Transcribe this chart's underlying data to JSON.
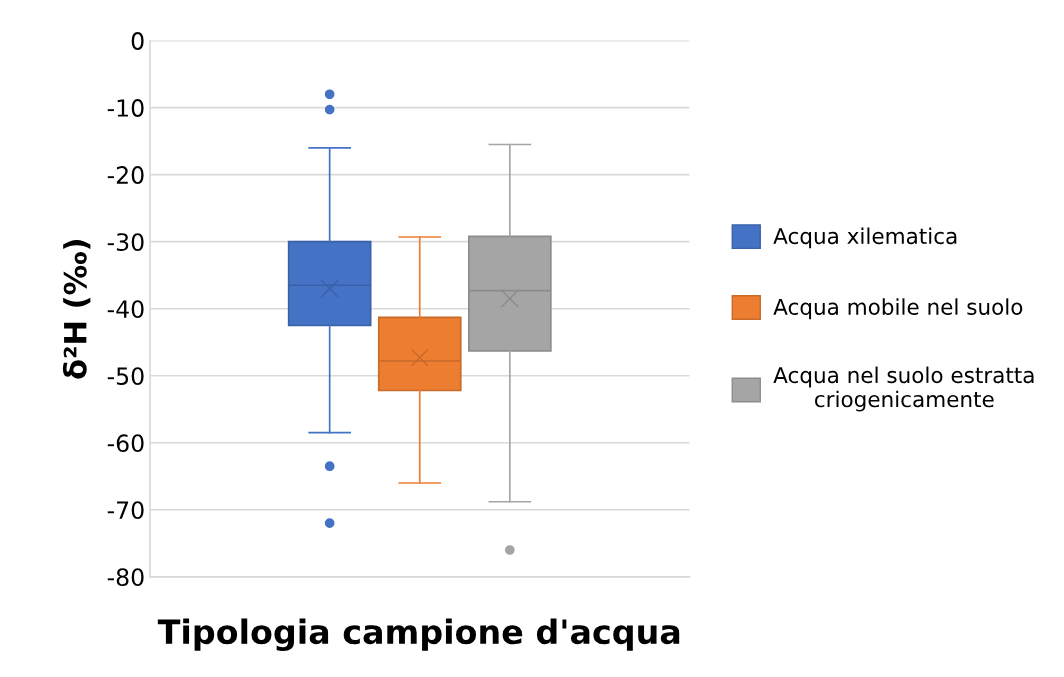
{
  "chart_data": {
    "type": "box",
    "xlabel": "Tipologia campione d'acqua",
    "ylabel": "δ²H (‰)",
    "categories": [
      null
    ],
    "series": [
      {
        "name": "Acqua xilematica",
        "color": "#4472c4",
        "boxes": [
          {
            "low": -58.5,
            "q1": -42.5,
            "median": -36.5,
            "q3": -30,
            "high": -16,
            "mean": -37,
            "outliers": [
              -8,
              -10.3,
              -63.5,
              -72
            ]
          }
        ]
      },
      {
        "name": "Acqua mobile nel suolo",
        "color": "#ed7d31",
        "boxes": [
          {
            "low": -66,
            "q1": -52.2,
            "median": -47.8,
            "q3": -41.3,
            "high": -29.3,
            "mean": -47.3
          }
        ]
      },
      {
        "name": "Acqua nel suolo estratta criogenicamente",
        "color": "#a5a5a5",
        "boxes": [
          {
            "low": -68.8,
            "q1": -46.3,
            "median": -37.3,
            "q3": -29.2,
            "high": -15.5,
            "mean": -38.5,
            "outliers": [
              -76
            ]
          }
        ]
      }
    ],
    "ylim": [
      -80,
      0
    ],
    "yticks": [
      -80,
      -70,
      -60,
      -50,
      -40,
      -30,
      -20,
      -10,
      0
    ],
    "grid": "y",
    "legend": "right",
    "tick_labels": "y",
    "marker": "cross"
  }
}
